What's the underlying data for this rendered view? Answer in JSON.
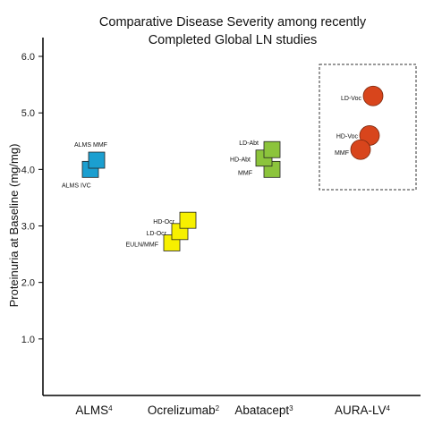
{
  "chart_data": {
    "type": "scatter",
    "title": [
      "Comparative Disease Severity among recently",
      "Completed Global LN studies"
    ],
    "ylabel": "Proteinuria at Baseline (mg/mg)",
    "ylim": [
      0,
      6.6
    ],
    "yticks": [
      "1.0",
      "2.0",
      "3.0",
      "4.0",
      "5.0",
      "6.0"
    ],
    "categories": [
      {
        "name": "ALMS",
        "sup": "4"
      },
      {
        "name": "Ocrelizumab",
        "sup": "2"
      },
      {
        "name": "Abatacept",
        "sup": "3"
      },
      {
        "name": "AURA-LV",
        "sup": "4"
      }
    ],
    "series": [
      {
        "category": "ALMS",
        "marker": "square",
        "color": "#1b9fd0",
        "points": [
          {
            "label": "ALMS MMF",
            "y": 4.1
          },
          {
            "label": "ALMS IVC",
            "y": 4.0
          }
        ]
      },
      {
        "category": "Ocrelizumab",
        "marker": "square",
        "color": "#f7f000",
        "points": [
          {
            "label": "HD-Ocr",
            "y": 3.1
          },
          {
            "label": "LD-Ocr",
            "y": 2.9
          },
          {
            "label": "EULN/MMF",
            "y": 2.7
          }
        ]
      },
      {
        "category": "Abatacept",
        "marker": "square",
        "color": "#8cc43c",
        "points": [
          {
            "label": "LD-Abt",
            "y": 4.35
          },
          {
            "label": "HD-Abt",
            "y": 4.2
          },
          {
            "label": "MMF",
            "y": 4.0
          }
        ]
      },
      {
        "category": "AURA-LV",
        "marker": "circle",
        "color": "#d8451c",
        "points": [
          {
            "label": "LD-Voc",
            "y": 5.3
          },
          {
            "label": "HD-Voc",
            "y": 4.6
          },
          {
            "label": "MMF",
            "y": 4.35
          }
        ]
      }
    ],
    "highlight_box_category": "AURA-LV",
    "grid": false,
    "legend": "none"
  }
}
